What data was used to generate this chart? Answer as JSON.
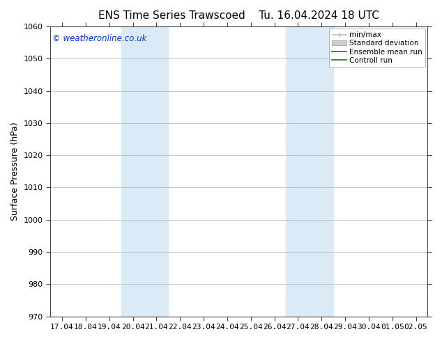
{
  "title_left": "ENS Time Series Trawscoed",
  "title_right": "Tu. 16.04.2024 18 UTC",
  "ylabel": "Surface Pressure (hPa)",
  "ylim": [
    970,
    1060
  ],
  "yticks": [
    970,
    980,
    990,
    1000,
    1010,
    1020,
    1030,
    1040,
    1050,
    1060
  ],
  "x_labels": [
    "17.04",
    "18.04",
    "19.04",
    "20.04",
    "21.04",
    "22.04",
    "23.04",
    "24.04",
    "25.04",
    "26.04",
    "27.04",
    "28.04",
    "29.04",
    "30.04",
    "01.05",
    "02.05"
  ],
  "shaded_bands": [
    {
      "x_start": "20.04",
      "x_end": "22.04"
    },
    {
      "x_start": "27.04",
      "x_end": "29.04"
    }
  ],
  "watermark": "© weatheronline.co.uk",
  "legend_items": [
    {
      "label": "min/max",
      "color": "#bbbbbb",
      "linestyle": "-",
      "linewidth": 1.2
    },
    {
      "label": "Standard deviation",
      "color": "#cccccc",
      "linestyle": "-",
      "linewidth": 5
    },
    {
      "label": "Ensemble mean run",
      "color": "red",
      "linestyle": "-",
      "linewidth": 1.2
    },
    {
      "label": "Controll run",
      "color": "green",
      "linestyle": "-",
      "linewidth": 1.2
    }
  ],
  "background_color": "#ffffff",
  "shaded_color": "#daeaf7",
  "grid_color": "#bbbbbb",
  "title_fontsize": 11,
  "axis_fontsize": 8,
  "watermark_fontsize": 8.5,
  "watermark_color": "#0033cc",
  "spine_color": "#444444"
}
